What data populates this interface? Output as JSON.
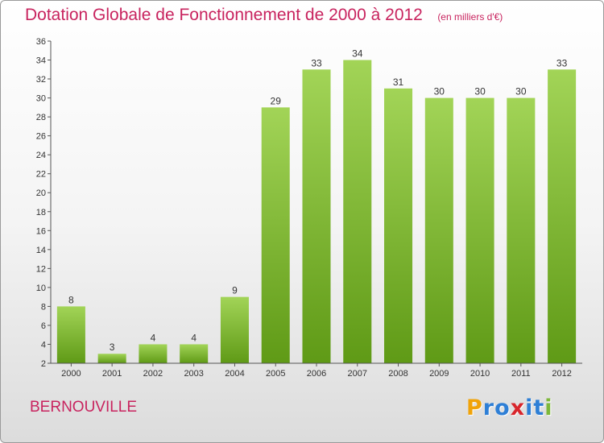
{
  "title": "Dotation Globale de Fonctionnement de 2000 à 2012",
  "unit_note": "(en milliers d'€)",
  "place": "BERNOUVILLE",
  "logo": {
    "letters": [
      "P",
      "r",
      "o",
      "x",
      "i",
      "t",
      "i"
    ],
    "colors": [
      "#f0a30a",
      "#2e7fd6",
      "#2e7fd6",
      "#d8262c",
      "#2e7fd6",
      "#2e7fd6",
      "#7db83a"
    ]
  },
  "colors": {
    "accent": "#c8235e",
    "bar_light": "#a2d457",
    "bar_dark": "#5f9a16"
  },
  "chart_data": {
    "type": "bar",
    "categories": [
      "2000",
      "2001",
      "2002",
      "2003",
      "2004",
      "2005",
      "2006",
      "2007",
      "2008",
      "2009",
      "2010",
      "2011",
      "2012"
    ],
    "values": [
      8,
      3,
      4,
      4,
      9,
      29,
      33,
      34,
      31,
      30,
      30,
      30,
      33
    ],
    "data_labels": [
      "8",
      "3",
      "4",
      "4",
      "9",
      "29",
      "33",
      "34",
      "31",
      "30",
      "30",
      "30",
      "33"
    ],
    "title": "Dotation Globale de Fonctionnement de 2000 à 2012",
    "subtitle": "(en milliers d'€)",
    "xlabel": "",
    "ylabel": "",
    "ylim": [
      2,
      36
    ],
    "yticks": [
      "2",
      "4",
      "6",
      "8",
      "10",
      "12",
      "14",
      "16",
      "18",
      "20",
      "22",
      "24",
      "26",
      "28",
      "30",
      "32",
      "34",
      "36"
    ],
    "grid": false,
    "legend": "none"
  }
}
